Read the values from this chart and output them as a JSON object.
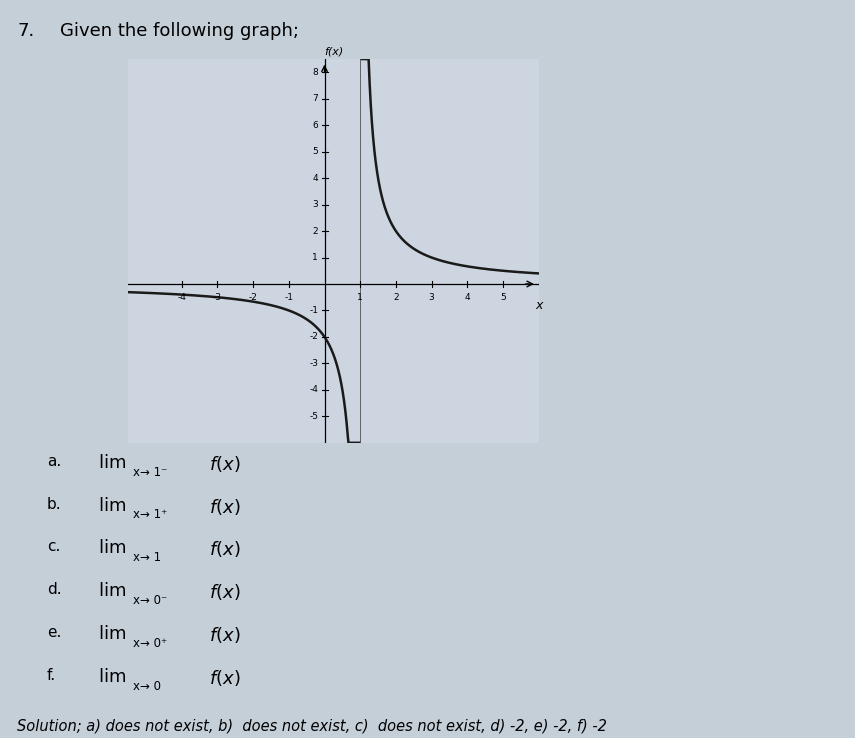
{
  "title": "f(x)",
  "xlabel": "x",
  "xlim": [
    -5.5,
    6
  ],
  "ylim": [
    -6,
    8.5
  ],
  "xtick_vals": [
    -4,
    -3,
    -2,
    -1,
    1,
    2,
    3,
    4,
    5
  ],
  "ytick_vals": [
    -5,
    -4,
    -3,
    -2,
    -1,
    1,
    2,
    3,
    4,
    5,
    6,
    7,
    8
  ],
  "vertical_asymptote": 1,
  "curve_color": "#1a1a1a",
  "line_width": 1.8,
  "graph_bg": "#ccd5e0",
  "fig_bg": "#c5cfd8",
  "problem_number": "7.",
  "problem_text": "Given the following graph;",
  "items": [
    {
      "label": "a.",
      "lim_sub": "x→ 1⁻",
      "lim_func": "f(x)"
    },
    {
      "label": "b.",
      "lim_sub": "x→ 1⁺",
      "lim_func": "f(x)"
    },
    {
      "label": "c.",
      "lim_sub": "x→ 1",
      "lim_func": "f(x)"
    },
    {
      "label": "d.",
      "lim_sub": "x→ 0⁻",
      "lim_func": "f(x)"
    },
    {
      "label": "e.",
      "lim_sub": "x→ 0⁺",
      "lim_func": "f(x)"
    },
    {
      "label": "f.",
      "lim_sub": "x→ 0",
      "lim_func": "f(x)"
    }
  ],
  "solution_text": "Solution; a) does not exist, b)  does not exist, c)  does not exist, d) -2, e) -2, f) -2"
}
